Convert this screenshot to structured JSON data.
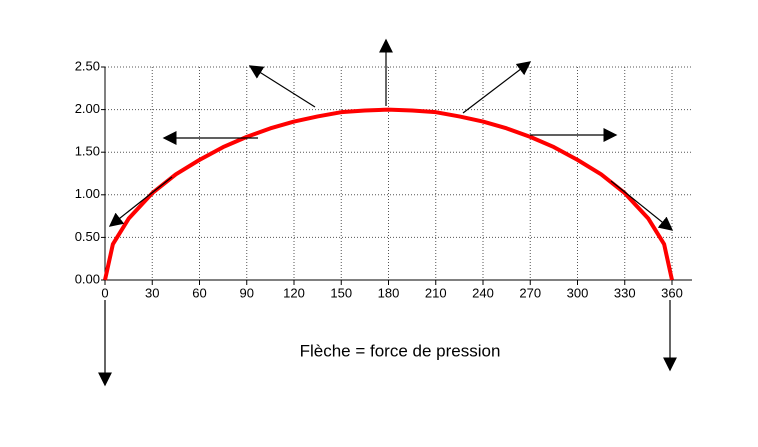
{
  "chart_data": {
    "type": "line",
    "annotation": "Flèche = force de pression",
    "x": [
      0,
      5,
      15,
      30,
      45,
      60,
      75,
      90,
      105,
      120,
      135,
      150,
      165,
      180,
      195,
      210,
      225,
      240,
      255,
      270,
      285,
      300,
      315,
      330,
      345,
      355,
      360
    ],
    "series": [
      {
        "color": "#ff0000",
        "values": [
          0,
          0.42,
          0.72,
          1.02,
          1.24,
          1.41,
          1.56,
          1.68,
          1.78,
          1.86,
          1.92,
          1.97,
          1.99,
          2,
          1.99,
          1.97,
          1.92,
          1.86,
          1.78,
          1.68,
          1.56,
          1.41,
          1.24,
          1.02,
          0.72,
          0.42,
          0
        ]
      }
    ],
    "xlim": [
      0,
      360
    ],
    "xticks": [
      0,
      30,
      60,
      90,
      120,
      150,
      180,
      210,
      240,
      270,
      300,
      330,
      360
    ],
    "ylim": [
      0,
      2.5
    ],
    "yticks": [
      {
        "value": 0,
        "label": "0.00"
      },
      {
        "value": 0.5,
        "label": "0.50"
      },
      {
        "value": 1,
        "label": "1.00"
      },
      {
        "value": 1.5,
        "label": "1.50"
      },
      {
        "value": 2,
        "label": "2.00"
      },
      {
        "value": 2.5,
        "label": "2.50"
      }
    ],
    "grid": true
  }
}
